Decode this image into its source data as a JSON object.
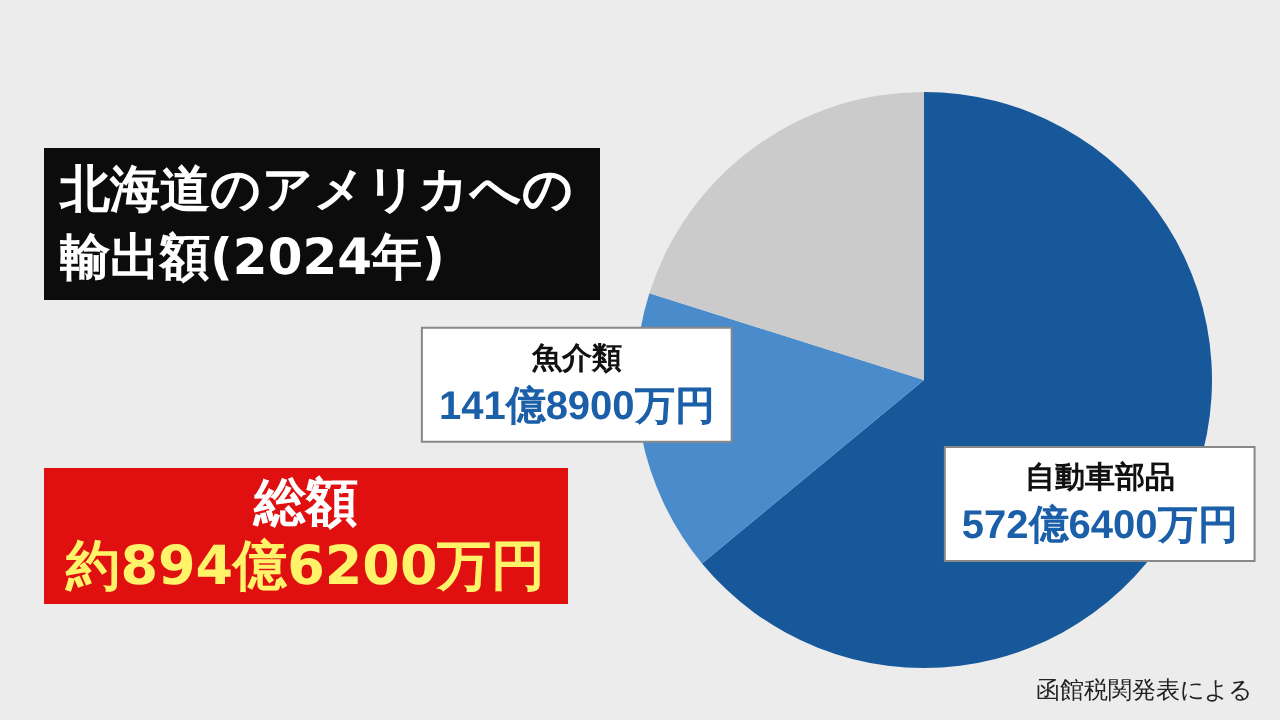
{
  "chart_data": {
    "type": "pie",
    "title": "北海道のアメリカへの輸出額(2024年)",
    "categories": [
      "自動車部品",
      "魚介類",
      null
    ],
    "values": [
      64.01,
      15.86,
      20.13
    ],
    "colors": [
      "#17589a",
      "#4a8ccb",
      "#cbcbcb"
    ],
    "annotations": [
      "総額",
      "約894億6200万円",
      "函館税関発表による",
      {
        "text": "572億6400万円",
        "x": "自動車部品"
      },
      {
        "text": "141億8900万円",
        "x": "魚介類"
      }
    ],
    "legend": false
  }
}
